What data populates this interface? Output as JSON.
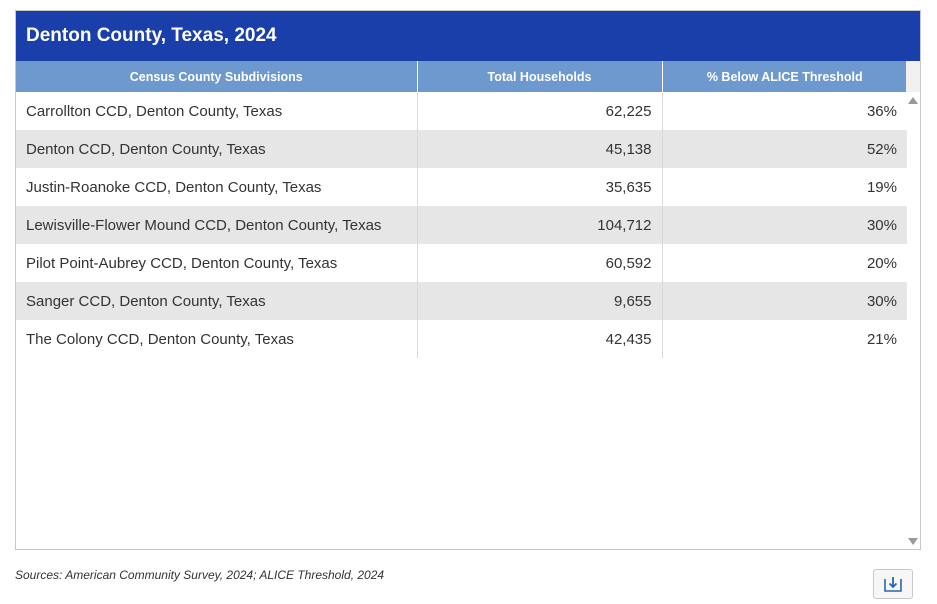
{
  "title": "Denton County, Texas, 2024",
  "columns": [
    "Census County Subdivisions",
    "Total Households",
    "% Below ALICE Threshold"
  ],
  "rows": [
    {
      "name": "Carrollton CCD, Denton County, Texas",
      "households": "62,225",
      "pct": "36%"
    },
    {
      "name": "Denton CCD, Denton County, Texas",
      "households": "45,138",
      "pct": "52%"
    },
    {
      "name": "Justin-Roanoke CCD, Denton County, Texas",
      "households": "35,635",
      "pct": "19%"
    },
    {
      "name": "Lewisville-Flower Mound CCD, Denton County, Texas",
      "households": "104,712",
      "pct": "30%"
    },
    {
      "name": "Pilot Point-Aubrey CCD, Denton County, Texas",
      "households": "60,592",
      "pct": "20%"
    },
    {
      "name": "Sanger CCD, Denton County, Texas",
      "households": "9,655",
      "pct": "30%"
    },
    {
      "name": "The Colony CCD, Denton County, Texas",
      "households": "42,435",
      "pct": "21%"
    }
  ],
  "sources": "Sources: American Community Survey, 2024; ALICE Threshold, 2024",
  "icons": {
    "download": "download-icon",
    "scroll_up": "scroll-up-arrow-icon",
    "scroll_down": "scroll-down-arrow-icon"
  },
  "colors": {
    "title_bg": "#1a3faa",
    "header_bg": "#6d99cf",
    "stripe": "#e6e6e6"
  }
}
